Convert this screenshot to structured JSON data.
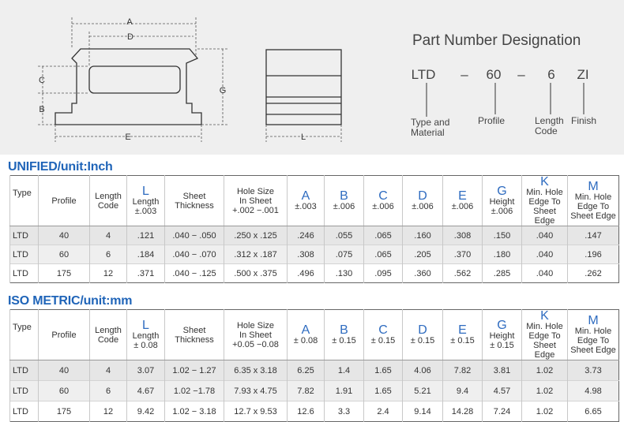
{
  "drawing": {
    "dimension_labels": [
      "A",
      "D",
      "C",
      "B",
      "G",
      "E",
      "L"
    ]
  },
  "designation": {
    "title": "Part Number Designation",
    "codes": [
      "LTD",
      "–",
      "60",
      "–",
      "6",
      "ZI"
    ],
    "captions": [
      [
        "Type and",
        "Material"
      ],
      [
        "Profile"
      ],
      [
        "Length",
        "Code"
      ],
      [
        "Finish"
      ]
    ]
  },
  "tables": [
    {
      "title": "UNIFIED/unit:Inch",
      "headers": [
        {
          "text": [
            "Type"
          ]
        },
        {
          "text": [
            "Profile"
          ]
        },
        {
          "text": [
            "Length",
            "Code"
          ]
        },
        {
          "letter": "L",
          "text": [
            "Length",
            "±.003"
          ]
        },
        {
          "text": [
            "Sheet",
            "Thickness"
          ]
        },
        {
          "text": [
            "Hole Size",
            "In Sheet",
            "+.002  −.001"
          ]
        },
        {
          "letter": "A",
          "text": [
            "±.003"
          ]
        },
        {
          "letter": "B",
          "text": [
            "±.006"
          ]
        },
        {
          "letter": "C",
          "text": [
            "±.006"
          ]
        },
        {
          "letter": "D",
          "text": [
            "±.006"
          ]
        },
        {
          "letter": "E",
          "text": [
            "±.006"
          ]
        },
        {
          "letter": "G",
          "text": [
            "Height",
            "±.006"
          ]
        },
        {
          "letter": "K",
          "text": [
            "Min. Hole",
            "Edge To",
            "Sheet Edge"
          ]
        },
        {
          "letter": "M",
          "text": [
            "Min. Hole",
            "Edge To",
            "Sheet Edge"
          ]
        }
      ],
      "rows": [
        [
          "LTD",
          "40",
          "4",
          ".121",
          ".040 − .050",
          ".250 x .125",
          ".246",
          ".055",
          ".065",
          ".160",
          ".308",
          ".150",
          ".040",
          ".147"
        ],
        [
          "LTD",
          "60",
          "6",
          ".184",
          ".040 − .070",
          ".312 x .187",
          ".308",
          ".075",
          ".065",
          ".205",
          ".370",
          ".180",
          ".040",
          ".196"
        ],
        [
          "LTD",
          "175",
          "12",
          ".371",
          ".040 − .125",
          ".500 x .375",
          ".496",
          ".130",
          ".095",
          ".360",
          ".562",
          ".285",
          ".040",
          ".262"
        ]
      ]
    },
    {
      "title": "ISO METRIC/unit:mm",
      "headers": [
        {
          "text": [
            "Type"
          ]
        },
        {
          "text": [
            "Profile"
          ]
        },
        {
          "text": [
            "Length",
            "Code"
          ]
        },
        {
          "letter": "L",
          "text": [
            "Length",
            "± 0.08"
          ]
        },
        {
          "text": [
            "Sheet",
            "Thickness"
          ]
        },
        {
          "text": [
            "Hole Size",
            "In Sheet",
            "+0.05  −0.08"
          ]
        },
        {
          "letter": "A",
          "text": [
            "± 0.08"
          ]
        },
        {
          "letter": "B",
          "text": [
            "± 0.15"
          ]
        },
        {
          "letter": "C",
          "text": [
            "± 0.15"
          ]
        },
        {
          "letter": "D",
          "text": [
            "± 0.15"
          ]
        },
        {
          "letter": "E",
          "text": [
            "± 0.15"
          ]
        },
        {
          "letter": "G",
          "text": [
            "Height",
            "± 0.15"
          ]
        },
        {
          "letter": "K",
          "text": [
            "Min. Hole",
            "Edge To",
            "Sheet Edge"
          ]
        },
        {
          "letter": "M",
          "text": [
            "Min. Hole",
            "Edge To",
            "Sheet Edge"
          ]
        }
      ],
      "rows": [
        [
          "LTD",
          "40",
          "4",
          "3.07",
          "1.02 − 1.27",
          "6.35 x 3.18",
          "6.25",
          "1.4",
          "1.65",
          "4.06",
          "7.82",
          "3.81",
          "1.02",
          "3.73"
        ],
        [
          "LTD",
          "60",
          "6",
          "4.67",
          "1.02 −1.78",
          "7.93 x 4.75",
          "7.82",
          "1.91",
          "1.65",
          "5.21",
          "9.4",
          "4.57",
          "1.02",
          "4.98"
        ],
        [
          "LTD",
          "175",
          "12",
          "9.42",
          "1.02 − 3.18",
          "12.7 x 9.53",
          "12.6",
          "3.3",
          "2.4",
          "9.14",
          "14.28",
          "7.24",
          "1.02",
          "6.65"
        ]
      ]
    }
  ]
}
